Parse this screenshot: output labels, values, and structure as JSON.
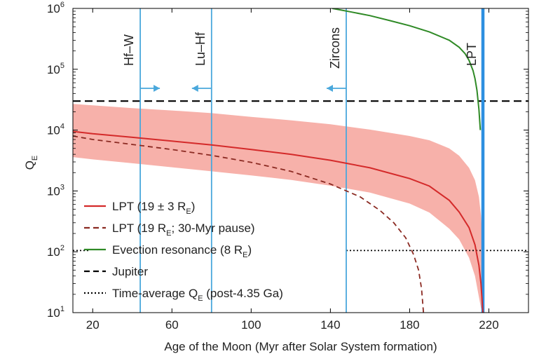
{
  "chart_data": {
    "type": "line",
    "x_axis": {
      "label": "Age of the Moon (Myr after Solar System formation)",
      "min": 10,
      "max": 240,
      "ticks": [
        20,
        60,
        100,
        140,
        180,
        220
      ]
    },
    "y_axis": {
      "label": "Q",
      "label_subscript": "E",
      "scale": "log",
      "min": 10,
      "max": 1000000,
      "ticks": [
        {
          "value": 10,
          "base": "10",
          "exp": "1"
        },
        {
          "value": 100,
          "base": "10",
          "exp": "2"
        },
        {
          "value": 1000,
          "base": "10",
          "exp": "3"
        },
        {
          "value": 10000,
          "base": "10",
          "exp": "4"
        },
        {
          "value": 100000,
          "base": "10",
          "exp": "5"
        },
        {
          "value": 1000000,
          "base": "10",
          "exp": "6"
        }
      ]
    },
    "series": [
      {
        "key": "lpt",
        "color": "#d42a2a",
        "style": "solid",
        "x": [
          10,
          20,
          40,
          60,
          80,
          100,
          120,
          140,
          160,
          180,
          190,
          200,
          205,
          210,
          213,
          215,
          216,
          217
        ],
        "y": [
          9500,
          8700,
          7600,
          6600,
          5700,
          4800,
          4000,
          3200,
          2400,
          1600,
          1200,
          700,
          450,
          250,
          130,
          60,
          30,
          10
        ]
      },
      {
        "key": "lpt_band",
        "color": "#f7b1aa",
        "style": "band",
        "x": [
          10,
          20,
          40,
          60,
          80,
          100,
          120,
          140,
          160,
          180,
          190,
          200,
          205,
          210,
          213,
          215,
          216,
          217
        ],
        "y_upper": [
          27000,
          25500,
          23000,
          21000,
          19000,
          16500,
          14500,
          12500,
          10200,
          8000,
          6800,
          5000,
          3800,
          2400,
          1500,
          800,
          400,
          120
        ],
        "y_lower": [
          3600,
          3300,
          2850,
          2450,
          2100,
          1800,
          1520,
          1220,
          940,
          620,
          440,
          240,
          160,
          80,
          40,
          18,
          12,
          10
        ]
      },
      {
        "key": "lpt_pause",
        "color": "#8b2a22",
        "style": "dashed",
        "x": [
          10,
          20,
          40,
          60,
          80,
          100,
          120,
          140,
          155,
          165,
          172,
          178,
          182,
          184.5,
          186,
          187
        ],
        "y": [
          8000,
          7000,
          5800,
          4800,
          3850,
          2950,
          2100,
          1300,
          800,
          480,
          300,
          170,
          90,
          50,
          25,
          10
        ]
      },
      {
        "key": "evection",
        "color": "#2f8a26",
        "style": "solid",
        "x": [
          141,
          150,
          160,
          170,
          180,
          190,
          200,
          205,
          208,
          210,
          212,
          213,
          214,
          215,
          215.7
        ],
        "y": [
          1000000,
          880000,
          760000,
          630000,
          520000,
          410000,
          300000,
          230000,
          180000,
          140000,
          95000,
          70000,
          45000,
          22000,
          10000
        ]
      },
      {
        "key": "jupiter",
        "color": "#000000",
        "style": "dashed",
        "x": [
          10,
          240
        ],
        "y": [
          30000,
          30000
        ]
      },
      {
        "key": "time_average",
        "color": "#000000",
        "style": "dotted",
        "segments": [
          {
            "x": [
              10,
              18
            ],
            "y": [
              105,
              105
            ]
          },
          {
            "x": [
              148,
              240
            ],
            "y": [
              105,
              105
            ]
          }
        ]
      }
    ],
    "vertical_lines": [
      {
        "key": "hfw",
        "x": 44,
        "label": "Hf–W",
        "color": "#4aa8dc",
        "arrow": "right"
      },
      {
        "key": "luhf",
        "x": 80,
        "label": "Lu–Hf",
        "color": "#4aa8dc",
        "arrow": "left"
      },
      {
        "key": "zircons",
        "x": 148,
        "label": "Zircons",
        "color": "#4aa8dc",
        "arrow": "left"
      },
      {
        "key": "lpt",
        "x": 217,
        "label": "LPT",
        "color": "#2d8fe0",
        "arrow": null
      }
    ],
    "legend": {
      "placement": "bottom-left",
      "items": [
        {
          "key": "lpt",
          "text": "LPT (19 ± 3 R",
          "sub": "E",
          "tail": ")",
          "color": "#d42a2a",
          "style": "solid"
        },
        {
          "key": "lpt_pause",
          "text": "LPT (19 R",
          "sub": "E",
          "tail": "; 30-Myr pause)",
          "color": "#8b2a22",
          "style": "dashed"
        },
        {
          "key": "evection",
          "text": "Evection resonance (8 R",
          "sub": "E",
          "tail": ")",
          "color": "#2f8a26",
          "style": "solid"
        },
        {
          "key": "jupiter",
          "text": "Jupiter",
          "sub": "",
          "tail": "",
          "color": "#000000",
          "style": "dashed"
        },
        {
          "key": "time_average",
          "text": "Time-average Q",
          "sub": "E",
          "tail": " (post-4.35 Ga)",
          "color": "#000000",
          "style": "dotted"
        }
      ]
    }
  }
}
